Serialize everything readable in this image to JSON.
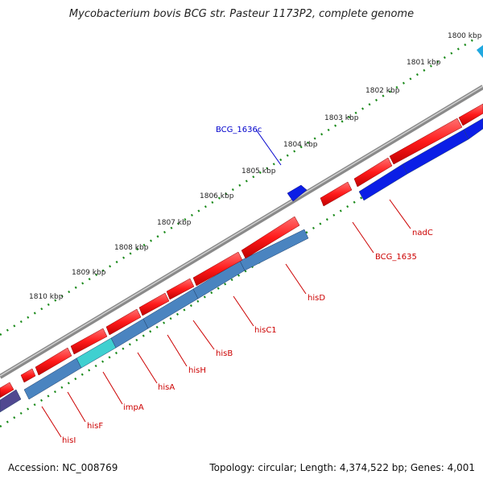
{
  "title": "Mycobacterium bovis BCG str. Pasteur 1173P2, complete genome",
  "accession": "Accession: NC_008769",
  "topology": "Topology: circular; Length: 4,374,522 bp; Genes: 4,001",
  "scale_labels": [
    "1800 kbp",
    "1801 kbp",
    "1802 kbp",
    "1803 kbp",
    "1804 kbp",
    "1805 kbp",
    "1806 kbp",
    "1807 kbp",
    "1808 kbp",
    "1809 kbp",
    "1810 kbp"
  ],
  "gene_labels": {
    "BCG_1636c": "BCG_1636c",
    "nadC": "nadC",
    "BCG_1635": "BCG_1635",
    "hisD": "hisD",
    "hisC1": "hisC1",
    "hisB": "hisB",
    "hisH": "hisH",
    "hisA": "hisA",
    "impA": "impA",
    "hisF": "hisF",
    "hisI": "hisI"
  },
  "colors": {
    "forward_gene": "#ff2020",
    "reverse_gene": "#4a84c0",
    "reverse_gene_alt": "#0b1ee6",
    "backbone": "#8a8a8a",
    "tick": "#1a8a1a",
    "label_red": "#cc0000",
    "label_blue": "#0000cc"
  }
}
